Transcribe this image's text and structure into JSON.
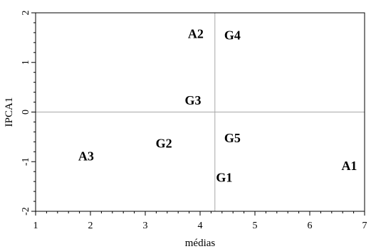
{
  "chart_data": {
    "type": "scatter",
    "xlabel": "médias",
    "ylabel": "IPCA1",
    "xlim": [
      1,
      7
    ],
    "ylim": [
      -2,
      2
    ],
    "x_ticks": [
      1,
      2,
      3,
      4,
      5,
      6,
      7
    ],
    "y_ticks": [
      -2,
      -1,
      0,
      1,
      2
    ],
    "y_tick_labels": [
      "-2",
      "-1",
      "0",
      "1",
      "2"
    ],
    "x_minor_step": 0.2,
    "y_minor_step": 0.2,
    "x_reference": 4.27,
    "y_reference": 0,
    "grid": false,
    "points": [
      {
        "label": "A1",
        "x": 6.72,
        "y": -1.08
      },
      {
        "label": "A2",
        "x": 3.92,
        "y": 1.58
      },
      {
        "label": "A3",
        "x": 1.92,
        "y": -0.89
      },
      {
        "label": "G1",
        "x": 4.44,
        "y": -1.32
      },
      {
        "label": "G2",
        "x": 3.34,
        "y": -0.63
      },
      {
        "label": "G3",
        "x": 3.87,
        "y": 0.24
      },
      {
        "label": "G4",
        "x": 4.59,
        "y": 1.55
      },
      {
        "label": "G5",
        "x": 4.59,
        "y": -0.52
      }
    ]
  }
}
